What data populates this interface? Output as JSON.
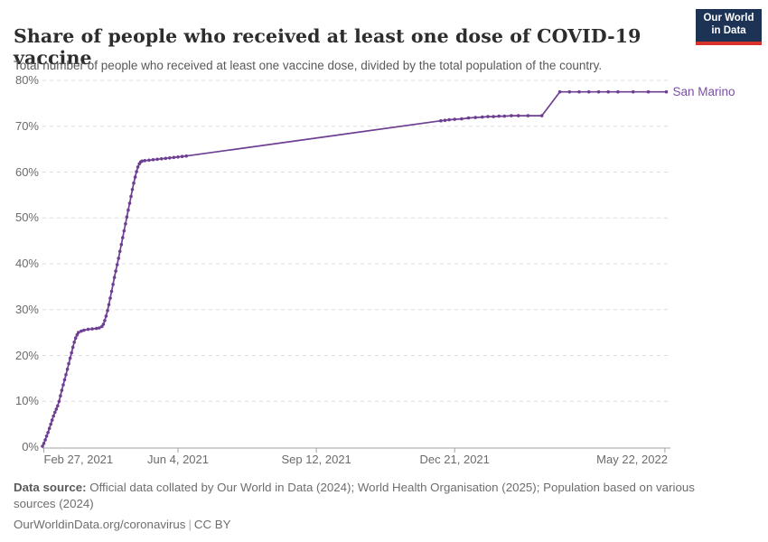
{
  "header": {
    "title": "Share of people who received at least one dose of COVID-19 vaccine",
    "subtitle": "Total number of people who received at least one vaccine dose, divided by the total population of the country.",
    "logo": {
      "line1": "Our World",
      "line2": "in Data",
      "bg_color": "#1d3356",
      "accent_color": "#d7332a"
    }
  },
  "chart_data": {
    "type": "line",
    "title": "Share of people who received at least one dose of COVID-19 vaccine",
    "grid": "horizontal-dashed",
    "legend_position": "end-of-line-label",
    "ylim": [
      0,
      80
    ],
    "y_ticks": [
      0,
      10,
      20,
      30,
      40,
      50,
      60,
      70,
      80
    ],
    "y_tick_format": "%",
    "xlim": [
      "2021-02-26",
      "2022-05-24"
    ],
    "x_ticks": [
      {
        "label": "Feb 27, 2021",
        "date": "2021-02-27"
      },
      {
        "label": "Jun 4, 2021",
        "date": "2021-06-04"
      },
      {
        "label": "Sep 12, 2021",
        "date": "2021-09-12"
      },
      {
        "label": "Dec 21, 2021",
        "date": "2021-12-21"
      },
      {
        "label": "May 22, 2022",
        "date": "2022-05-22"
      }
    ],
    "colors": {
      "grid": "#dcdcdc",
      "axis": "#a3a3a3",
      "tick_text": "#6b6b6b"
    },
    "series": [
      {
        "name": "San Marino",
        "color": "#6D3E91",
        "label_color": "#7a4fa3",
        "points": [
          [
            "2021-02-26",
            0.2
          ],
          [
            "2021-02-27",
            0.8
          ],
          [
            "2021-02-28",
            1.6
          ],
          [
            "2021-03-01",
            2.4
          ],
          [
            "2021-03-02",
            3.2
          ],
          [
            "2021-03-03",
            4.1
          ],
          [
            "2021-03-04",
            5.0
          ],
          [
            "2021-03-05",
            5.9
          ],
          [
            "2021-03-06",
            6.8
          ],
          [
            "2021-03-07",
            7.6
          ],
          [
            "2021-03-08",
            8.3
          ],
          [
            "2021-03-09",
            9.0
          ],
          [
            "2021-03-10",
            10.0
          ],
          [
            "2021-03-11",
            11.2
          ],
          [
            "2021-03-12",
            12.4
          ],
          [
            "2021-03-13",
            13.6
          ],
          [
            "2021-03-14",
            14.7
          ],
          [
            "2021-03-15",
            15.8
          ],
          [
            "2021-03-16",
            17.0
          ],
          [
            "2021-03-17",
            18.2
          ],
          [
            "2021-03-18",
            19.4
          ],
          [
            "2021-03-19",
            20.6
          ],
          [
            "2021-03-20",
            21.8
          ],
          [
            "2021-03-21",
            22.9
          ],
          [
            "2021-03-22",
            23.8
          ],
          [
            "2021-03-23",
            24.5
          ],
          [
            "2021-03-24",
            25.0
          ],
          [
            "2021-03-26",
            25.3
          ],
          [
            "2021-03-28",
            25.5
          ],
          [
            "2021-03-31",
            25.7
          ],
          [
            "2021-04-03",
            25.8
          ],
          [
            "2021-04-06",
            25.9
          ],
          [
            "2021-04-08",
            26.0
          ],
          [
            "2021-04-10",
            26.3
          ],
          [
            "2021-04-11",
            26.8
          ],
          [
            "2021-04-12",
            27.6
          ],
          [
            "2021-04-13",
            28.6
          ],
          [
            "2021-04-14",
            29.8
          ],
          [
            "2021-04-15",
            31.1
          ],
          [
            "2021-04-16",
            32.5
          ],
          [
            "2021-04-17",
            34.0
          ],
          [
            "2021-04-18",
            35.5
          ],
          [
            "2021-04-19",
            37.0
          ],
          [
            "2021-04-20",
            38.4
          ],
          [
            "2021-04-21",
            39.8
          ],
          [
            "2021-04-22",
            41.2
          ],
          [
            "2021-04-23",
            42.7
          ],
          [
            "2021-04-24",
            44.2
          ],
          [
            "2021-04-25",
            45.7
          ],
          [
            "2021-04-26",
            47.2
          ],
          [
            "2021-04-27",
            48.7
          ],
          [
            "2021-04-28",
            50.2
          ],
          [
            "2021-04-29",
            51.7
          ],
          [
            "2021-04-30",
            53.2
          ],
          [
            "2021-05-01",
            54.7
          ],
          [
            "2021-05-02",
            56.2
          ],
          [
            "2021-05-03",
            57.6
          ],
          [
            "2021-05-04",
            58.9
          ],
          [
            "2021-05-05",
            60.1
          ],
          [
            "2021-05-06",
            61.1
          ],
          [
            "2021-05-07",
            61.8
          ],
          [
            "2021-05-08",
            62.2
          ],
          [
            "2021-05-09",
            62.4
          ],
          [
            "2021-05-11",
            62.5
          ],
          [
            "2021-05-14",
            62.6
          ],
          [
            "2021-05-17",
            62.7
          ],
          [
            "2021-05-20",
            62.8
          ],
          [
            "2021-05-23",
            62.9
          ],
          [
            "2021-05-26",
            63.0
          ],
          [
            "2021-05-29",
            63.1
          ],
          [
            "2021-06-01",
            63.2
          ],
          [
            "2021-06-04",
            63.3
          ],
          [
            "2021-06-07",
            63.4
          ],
          [
            "2021-06-10",
            63.5
          ],
          [
            "2021-12-11",
            71.2
          ],
          [
            "2021-12-14",
            71.3
          ],
          [
            "2021-12-17",
            71.4
          ],
          [
            "2021-12-21",
            71.5
          ],
          [
            "2021-12-26",
            71.6
          ],
          [
            "2021-12-31",
            71.8
          ],
          [
            "2022-01-05",
            71.9
          ],
          [
            "2022-01-10",
            72.0
          ],
          [
            "2022-01-14",
            72.1
          ],
          [
            "2022-01-18",
            72.1
          ],
          [
            "2022-01-22",
            72.2
          ],
          [
            "2022-01-26",
            72.2
          ],
          [
            "2022-01-31",
            72.3
          ],
          [
            "2022-02-05",
            72.3
          ],
          [
            "2022-02-12",
            72.3
          ],
          [
            "2022-02-22",
            72.3
          ],
          [
            "2022-03-07",
            77.5
          ],
          [
            "2022-03-14",
            77.5
          ],
          [
            "2022-03-21",
            77.5
          ],
          [
            "2022-03-28",
            77.5
          ],
          [
            "2022-04-04",
            77.5
          ],
          [
            "2022-04-11",
            77.5
          ],
          [
            "2022-04-18",
            77.5
          ],
          [
            "2022-04-29",
            77.5
          ],
          [
            "2022-05-10",
            77.5
          ],
          [
            "2022-05-23",
            77.5
          ]
        ]
      }
    ]
  },
  "footer": {
    "source_label": "Data source:",
    "source_text": " Official data collated by Our World in Data (2024); World Health Organisation (2025); Population based on various sources (2024)",
    "link_text": "OurWorldinData.org/coronavirus",
    "separator": "|",
    "license": "CC BY"
  }
}
